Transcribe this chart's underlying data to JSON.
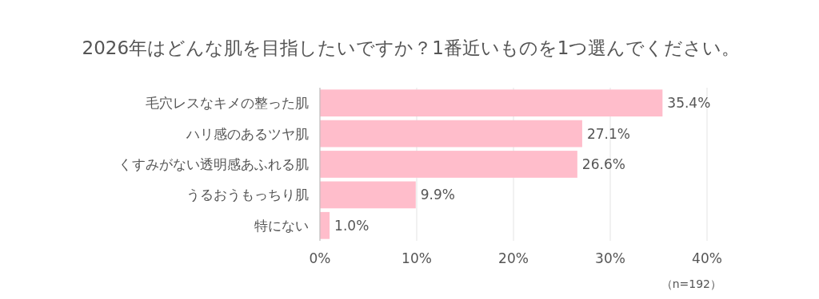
{
  "chart_data": {
    "type": "bar",
    "orientation": "horizontal",
    "title": "2026年はどんな肌を目指したいですか？1番近いものを1つ選んでください。",
    "categories": [
      "毛穴レスなキメの整った肌",
      "ハリ感のあるツヤ肌",
      "くすみがない透明感あふれる肌",
      "うるおうもっちり肌",
      "特にない"
    ],
    "values": [
      35.4,
      27.1,
      26.6,
      9.9,
      1.0
    ],
    "value_labels": [
      "35.4%",
      "27.1%",
      "26.6%",
      "9.9%",
      "1.0%"
    ],
    "color": "#ffbdcb",
    "xlim": [
      0,
      40
    ],
    "xticks": [
      {
        "value": 0,
        "label": "0%"
      },
      {
        "value": 10,
        "label": "10%"
      },
      {
        "value": 20,
        "label": "20%"
      },
      {
        "value": 30,
        "label": "30%"
      },
      {
        "value": 40,
        "label": "40%"
      }
    ],
    "grid": "x",
    "annotations": [
      "（n=192）"
    ]
  }
}
